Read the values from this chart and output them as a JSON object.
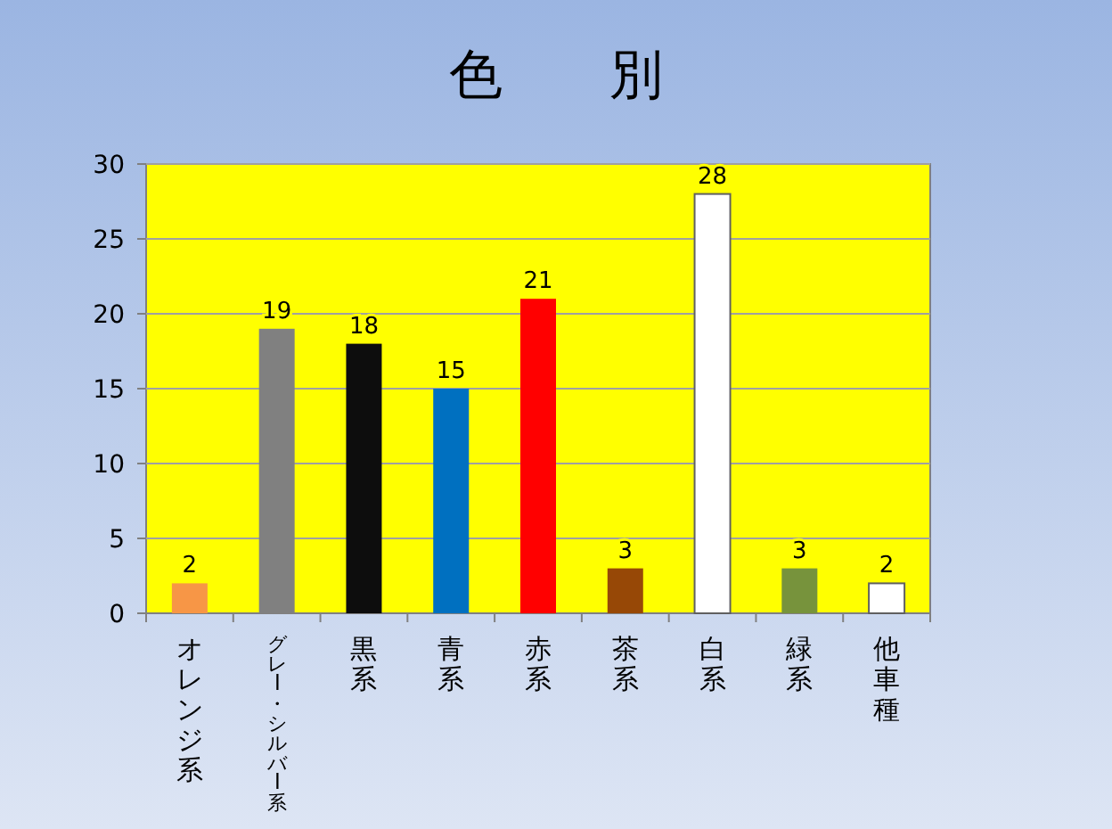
{
  "chart_data": {
    "type": "bar",
    "title": "色　　別",
    "categories": [
      "オレンジ系",
      "グレー・シルバー系",
      "黒系",
      "青系",
      "赤系",
      "茶系",
      "白系",
      "緑系",
      "他車種"
    ],
    "values": [
      2,
      19,
      18,
      15,
      21,
      3,
      28,
      3,
      2
    ],
    "colors": [
      "#f79646",
      "#808080",
      "#0d0d0d",
      "#0070c0",
      "#ff0000",
      "#974806",
      "#ffffff",
      "#77933c",
      "#ffffff"
    ],
    "ylim": [
      0,
      30
    ],
    "yticks": [
      0,
      5,
      10,
      15,
      20,
      25,
      30
    ],
    "grid": "y",
    "data_labels": true
  }
}
